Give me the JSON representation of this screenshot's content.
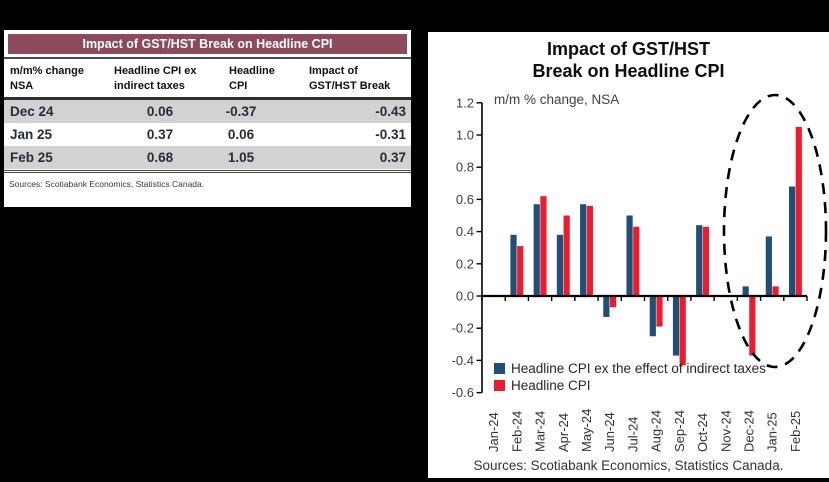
{
  "table": {
    "title": "Impact of GST/HST Break on Headline CPI",
    "col_headers": [
      "m/m% change\nNSA",
      "Headline CPI ex\nindirect taxes",
      "Headline\nCPI",
      "Impact of\nGST/HST Break"
    ],
    "rows": [
      {
        "period": "Dec 24",
        "cpi_ex_indirect": "0.06",
        "headline_cpi": "-0.37",
        "impact": "-0.43"
      },
      {
        "period": "Jan 25",
        "cpi_ex_indirect": "0.37",
        "headline_cpi": "0.06",
        "impact": "-0.31"
      },
      {
        "period": "Feb 25",
        "cpi_ex_indirect": "0.68",
        "headline_cpi": "1.05",
        "impact": "0.37"
      }
    ],
    "source": "Sources: Scotiabank Economics, Statistics Canada."
  },
  "chart": {
    "title_line1": "Impact of GST/HST",
    "title_line2": "Break on Headline CPI",
    "subtitle": "m/m % change, NSA",
    "source": "Sources: Scotiabank Economics, Statistics Canada."
  },
  "chart_data": {
    "type": "bar",
    "title": "Impact of GST/HST Break on Headline CPI",
    "subtitle": "m/m % change, NSA",
    "categories": [
      "Jan-24",
      "Feb-24",
      "Mar-24",
      "Apr-24",
      "May-24",
      "Jun-24",
      "Jul-24",
      "Aug-24",
      "Sep-24",
      "Oct-24",
      "Nov-24",
      "Dec-24",
      "Jan-25",
      "Feb-25"
    ],
    "series": [
      {
        "name": "Headline CPI ex the effect of indirect taxes",
        "color": "#1F4E79",
        "values": [
          0,
          0.38,
          0.57,
          0.38,
          0.57,
          -0.13,
          0.5,
          -0.25,
          -0.37,
          0.44,
          0,
          0.06,
          0.37,
          0.68
        ]
      },
      {
        "name": "Headline CPI",
        "color": "#EC1C2E",
        "values": [
          0,
          0.31,
          0.62,
          0.5,
          0.56,
          -0.07,
          0.43,
          -0.19,
          -0.43,
          0.43,
          0,
          -0.37,
          0.06,
          1.05
        ]
      }
    ],
    "ylabel": "m/m % change, NSA",
    "ylim": [
      -0.6,
      1.2
    ],
    "ytick_step": 0.2,
    "grid": false,
    "legend_position": "inside-bottom-left",
    "annotation": "dashed ellipse highlighting Dec-24 to Feb-25"
  },
  "colors": {
    "table_header_maroon": "#8D4A5D",
    "table_row_gray": "#D2D2D2",
    "bar_blue": "#1F4E79",
    "bar_red": "#EC1C2E"
  }
}
